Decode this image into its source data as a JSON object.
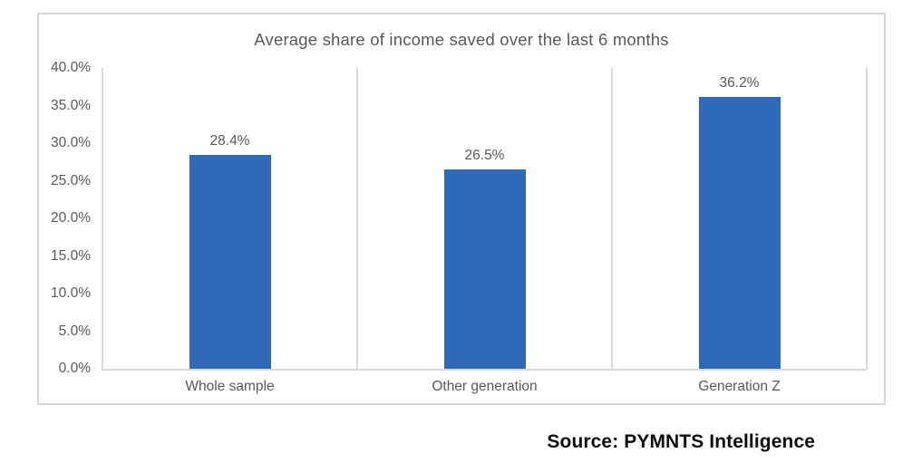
{
  "chart_data": {
    "type": "bar",
    "title": "Average share of income saved over the last 6 months",
    "categories": [
      "Whole sample",
      "Other generation",
      "Generation Z"
    ],
    "values": [
      28.4,
      26.5,
      36.2
    ],
    "data_labels": [
      "28.4%",
      "26.5%",
      "36.2%"
    ],
    "y_ticks": [
      "40.0%",
      "35.0%",
      "30.0%",
      "25.0%",
      "20.0%",
      "15.0%",
      "10.0%",
      "5.0%",
      "0.0%"
    ],
    "ylim": [
      0,
      40
    ],
    "xlabel": "",
    "ylabel": "",
    "legend": "none",
    "grid": "vertical category separators only",
    "bar_color": "#2f6ab8"
  },
  "colors": {
    "bar": "#2f6ab8",
    "axis_text": "#595959",
    "gridline": "#d9d9d9",
    "frame_border": "#d8d8d8",
    "source_text": "#0d0d0d",
    "background": "#ffffff"
  },
  "source": {
    "label": "Source: PYMNTS Intelligence"
  }
}
